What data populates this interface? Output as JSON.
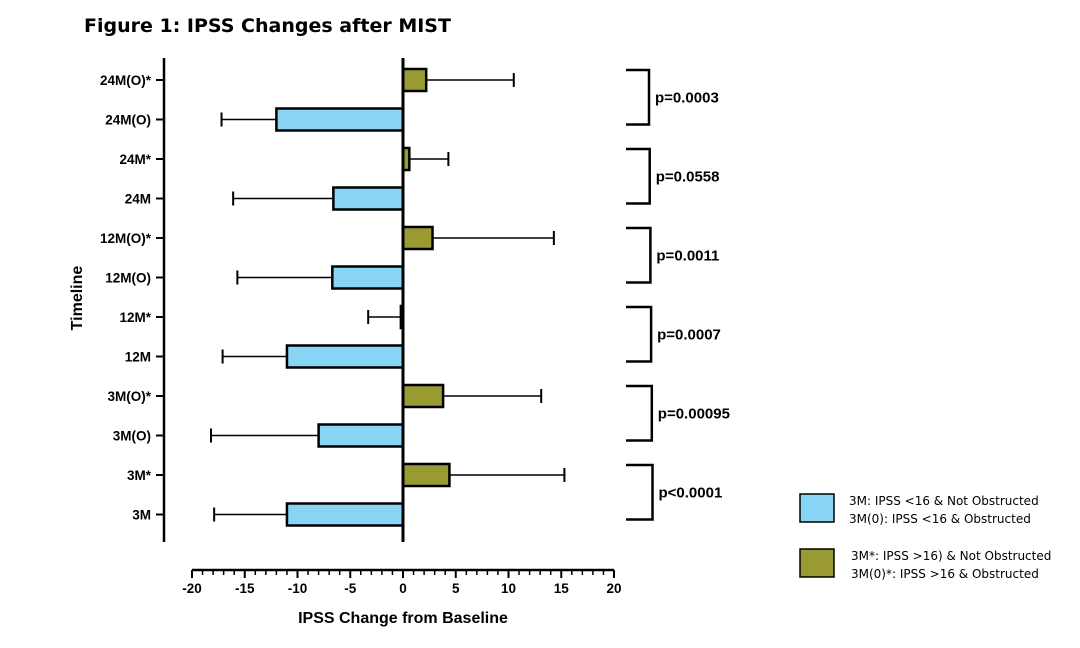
{
  "chart_data": {
    "type": "bar",
    "orientation": "horizontal",
    "title": "Figure 1: IPSS Changes after MIST",
    "xlabel": "IPSS Change from Baseline",
    "ylabel": "Timeline",
    "xlim": [
      -20,
      20
    ],
    "xticks": [
      "-20",
      "-15",
      "-10",
      "-5",
      "0",
      "5",
      "10",
      "15",
      "20"
    ],
    "grid": false,
    "legend_position": "right",
    "colors": {
      "blue": "#87d4f5",
      "olive": "#9a9a33",
      "stroke": "#000000"
    },
    "categories": [
      "24M(O)*",
      "24M(O)",
      "24M*",
      "24M",
      "12M(O)*",
      "12M(O)",
      "12M*",
      "12M",
      "3M(O)*",
      "3M(O)",
      "3M*",
      "3M"
    ],
    "bars": [
      {
        "label": "24M(O)*",
        "value": 2.2,
        "error_end": 10.5,
        "color": "olive"
      },
      {
        "label": "24M(O)",
        "value": -12,
        "error_end": -17.2,
        "color": "blue"
      },
      {
        "label": "24M*",
        "value": 0.6,
        "error_end": 4.3,
        "color": "olive"
      },
      {
        "label": "24M",
        "value": -6.6,
        "error_end": -16.1,
        "color": "blue"
      },
      {
        "label": "12M(O)*",
        "value": 2.8,
        "error_end": 14.3,
        "color": "olive"
      },
      {
        "label": "12M(O)",
        "value": -6.7,
        "error_end": -15.7,
        "color": "blue"
      },
      {
        "label": "12M*",
        "value": -0.2,
        "error_end": -3.3,
        "color": "olive"
      },
      {
        "label": "12M",
        "value": -11,
        "error_end": -17.1,
        "color": "blue"
      },
      {
        "label": "3M(O)*",
        "value": 3.8,
        "error_end": 13.1,
        "color": "olive"
      },
      {
        "label": "3M(O)",
        "value": -8,
        "error_end": -18.2,
        "color": "blue"
      },
      {
        "label": "3M*",
        "value": 4.4,
        "error_end": 15.3,
        "color": "olive"
      },
      {
        "label": "3M",
        "value": -11,
        "error_end": -17.9,
        "color": "blue"
      }
    ],
    "pvalues": [
      {
        "text": "p=0.0003"
      },
      {
        "text": "p=0.0558"
      },
      {
        "text": "p=0.0011"
      },
      {
        "text": "p=0.0007"
      },
      {
        "text": "p=0.00095"
      },
      {
        "text": "p<0.0001"
      }
    ],
    "legend": [
      {
        "color": "blue",
        "lines": [
          "3M: IPSS <16 & Not Obstructed",
          "3M(0): IPSS <16 & Obstructed"
        ]
      },
      {
        "color": "olive",
        "lines": [
          "3M*: IPSS >16) & Not Obstructed",
          "3M(0)*: IPSS >16 & Obstructed"
        ]
      }
    ]
  }
}
